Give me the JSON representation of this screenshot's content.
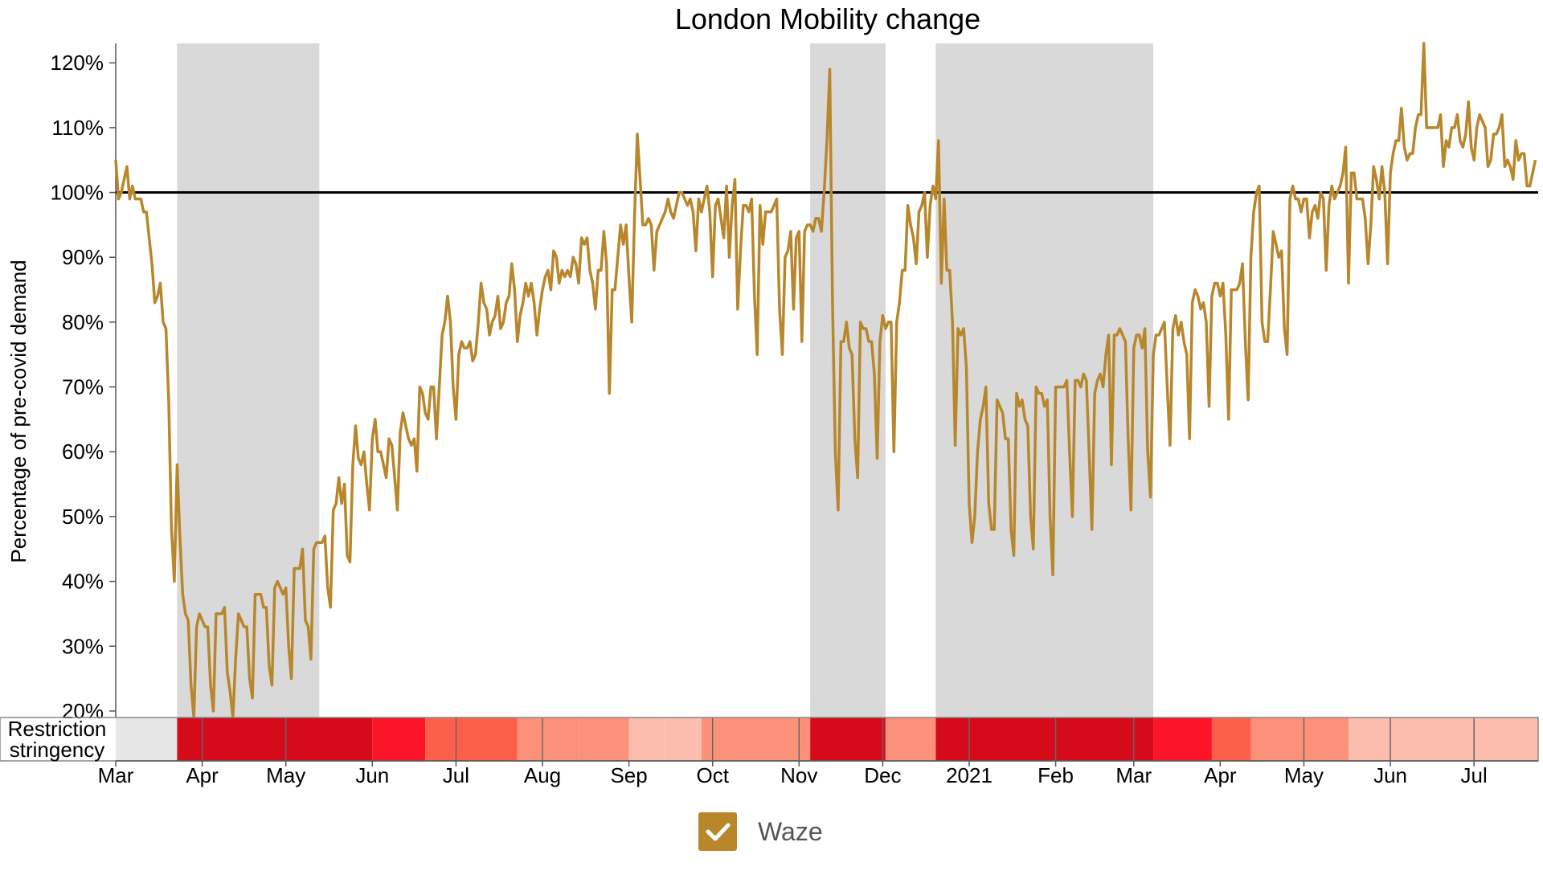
{
  "chart_data": {
    "type": "line",
    "title": "London Mobility change",
    "ylabel": "Percentage of pre-covid demand",
    "y_unit": "%",
    "ylim": [
      19,
      123
    ],
    "yticks": [
      20,
      30,
      40,
      50,
      60,
      70,
      80,
      90,
      100,
      110,
      120
    ],
    "xlim": [
      "2020-03-01",
      "2021-07-24"
    ],
    "x_ticks": [
      {
        "date": "2020-03-01",
        "label": "Mar"
      },
      {
        "date": "2020-04-01",
        "label": "Apr"
      },
      {
        "date": "2020-05-01",
        "label": "May"
      },
      {
        "date": "2020-06-01",
        "label": "Jun"
      },
      {
        "date": "2020-07-01",
        "label": "Jul"
      },
      {
        "date": "2020-08-01",
        "label": "Aug"
      },
      {
        "date": "2020-09-01",
        "label": "Sep"
      },
      {
        "date": "2020-10-01",
        "label": "Oct"
      },
      {
        "date": "2020-11-01",
        "label": "Nov"
      },
      {
        "date": "2020-12-01",
        "label": "Dec"
      },
      {
        "date": "2021-01-01",
        "label": "2021"
      },
      {
        "date": "2021-02-01",
        "label": "Feb"
      },
      {
        "date": "2021-03-01",
        "label": "Mar"
      },
      {
        "date": "2021-04-01",
        "label": "Apr"
      },
      {
        "date": "2021-05-01",
        "label": "May"
      },
      {
        "date": "2021-06-01",
        "label": "Jun"
      },
      {
        "date": "2021-07-01",
        "label": "Jul"
      }
    ],
    "reference_line": 100,
    "grid": false,
    "lockdown_periods": [
      {
        "start": "2020-03-23",
        "end": "2020-05-13"
      },
      {
        "start": "2020-11-05",
        "end": "2020-12-02"
      },
      {
        "start": "2020-12-20",
        "end": "2021-03-08"
      }
    ],
    "restriction_stringency": {
      "label_line1": "Restriction",
      "label_line2": "stringency",
      "segments": [
        {
          "start": "2020-03-01",
          "end": "2020-03-23",
          "color": "#e6e6e6"
        },
        {
          "start": "2020-03-23",
          "end": "2020-06-01",
          "color": "#d50a1b"
        },
        {
          "start": "2020-06-01",
          "end": "2020-06-20",
          "color": "#fb1526"
        },
        {
          "start": "2020-06-20",
          "end": "2020-07-23",
          "color": "#fc604a"
        },
        {
          "start": "2020-07-23",
          "end": "2020-08-14",
          "color": "#fc917a"
        },
        {
          "start": "2020-08-14",
          "end": "2020-09-01",
          "color": "#fc917a"
        },
        {
          "start": "2020-09-01",
          "end": "2020-09-14",
          "color": "#fcbcae"
        },
        {
          "start": "2020-09-14",
          "end": "2020-09-27",
          "color": "#fcbcae"
        },
        {
          "start": "2020-09-27",
          "end": "2020-11-05",
          "color": "#fc917a"
        },
        {
          "start": "2020-11-05",
          "end": "2020-12-02",
          "color": "#d50a1b"
        },
        {
          "start": "2020-12-02",
          "end": "2020-12-20",
          "color": "#fc917a"
        },
        {
          "start": "2020-12-20",
          "end": "2021-03-08",
          "color": "#d50a1b"
        },
        {
          "start": "2021-03-08",
          "end": "2021-03-29",
          "color": "#fb1526"
        },
        {
          "start": "2021-03-29",
          "end": "2021-04-12",
          "color": "#fc604a"
        },
        {
          "start": "2021-04-12",
          "end": "2021-05-17",
          "color": "#fc917a"
        },
        {
          "start": "2021-05-17",
          "end": "2021-06-21",
          "color": "#fcbcae"
        },
        {
          "start": "2021-06-21",
          "end": "2021-07-24",
          "color": "#fcbcae"
        }
      ],
      "dividers": [
        "2020-04-01",
        "2020-05-01",
        "2020-07-01",
        "2020-08-01",
        "2020-10-01",
        "2020-11-01",
        "2020-12-01",
        "2021-01-01",
        "2021-02-01",
        "2021-03-01",
        "2021-05-01",
        "2021-06-01",
        "2021-07-01"
      ]
    },
    "series": [
      {
        "name": "Waze",
        "color": "#b8862b",
        "start_date": "2020-03-01",
        "values": [
          105,
          99,
          100,
          102,
          104,
          99,
          101,
          99,
          99,
          99,
          97,
          97,
          93,
          89,
          83,
          84,
          86,
          80,
          79,
          68,
          48,
          40,
          58,
          47,
          38,
          35,
          34,
          24,
          19,
          33,
          35,
          34,
          33,
          33,
          24,
          20,
          35,
          35,
          35,
          36,
          26,
          23,
          19,
          28,
          35,
          34,
          33,
          33,
          25,
          22,
          38,
          38,
          38,
          36,
          36,
          27,
          24,
          39,
          40,
          39,
          38,
          39,
          30,
          25,
          42,
          42,
          42,
          45,
          34,
          33,
          28,
          45,
          46,
          46,
          46,
          47,
          39,
          36,
          51,
          52,
          56,
          52,
          55,
          44,
          43,
          58,
          64,
          59,
          58,
          60,
          55,
          51,
          62,
          65,
          60,
          60,
          58,
          56,
          62,
          61,
          56,
          51,
          63,
          66,
          64,
          62,
          61,
          62,
          57,
          70,
          69,
          66,
          65,
          70,
          70,
          62,
          70,
          78,
          80,
          84,
          80,
          70,
          65,
          75,
          77,
          76,
          76,
          77,
          74,
          75,
          80,
          86,
          83,
          82,
          78,
          80,
          81,
          84,
          79,
          80,
          83,
          84,
          89,
          85,
          77,
          81,
          83,
          86,
          84,
          86,
          83,
          78,
          82,
          85,
          87,
          88,
          85,
          91,
          90,
          86,
          88,
          87,
          88,
          87,
          90,
          89,
          86,
          93,
          92,
          93,
          88,
          86,
          82,
          88,
          88,
          94,
          89,
          69,
          85,
          85,
          90,
          95,
          92,
          95,
          87,
          80,
          96,
          109,
          102,
          95,
          95,
          96,
          95,
          88,
          94,
          95,
          96,
          97,
          99,
          97,
          96,
          98,
          100,
          100,
          99,
          98,
          99,
          97,
          91,
          99,
          97,
          99,
          101,
          97,
          87,
          98,
          99,
          96,
          93,
          101,
          90,
          98,
          102,
          82,
          91,
          98,
          98,
          97,
          99,
          84,
          75,
          98,
          92,
          97,
          97,
          97,
          98,
          99,
          82,
          75,
          90,
          91,
          94,
          82,
          93,
          94,
          77,
          94,
          95,
          95,
          94,
          96,
          96,
          94,
          100,
          108,
          119,
          83,
          60,
          51,
          77,
          77,
          80,
          76,
          75,
          62,
          56,
          80,
          79,
          79,
          77,
          77,
          72,
          59,
          77,
          81,
          79,
          80,
          80,
          60,
          80,
          83,
          88,
          88,
          98,
          95,
          93,
          89,
          97,
          98,
          100,
          90,
          98,
          101,
          99,
          108,
          86,
          99,
          88,
          88,
          80,
          61,
          79,
          78,
          79,
          73,
          52,
          46,
          50,
          60,
          65,
          67,
          70,
          52,
          48,
          48,
          68,
          67,
          66,
          62,
          62,
          48,
          44,
          69,
          67,
          68,
          65,
          64,
          50,
          45,
          70,
          69,
          69,
          67,
          68,
          50,
          41,
          70,
          70,
          70,
          70,
          71,
          60,
          50,
          71,
          71,
          70,
          72,
          71,
          60,
          48,
          69,
          71,
          72,
          70,
          75,
          78,
          58,
          78,
          78,
          79,
          78,
          77,
          62,
          51,
          76,
          78,
          78,
          76,
          79,
          60,
          53,
          75,
          78,
          78,
          79,
          80,
          70,
          61,
          79,
          81,
          78,
          80,
          77,
          75,
          62,
          83,
          85,
          84,
          82,
          83,
          80,
          67,
          84,
          86,
          86,
          84,
          86,
          78,
          65,
          85,
          85,
          85,
          86,
          89,
          77,
          68,
          90,
          97,
          100,
          101,
          80,
          77,
          77,
          85,
          94,
          92,
          90,
          91,
          79,
          75,
          99,
          101,
          99,
          99,
          97,
          99,
          99,
          93,
          97,
          98,
          96,
          100,
          99,
          88,
          98,
          101,
          99,
          100,
          101,
          103,
          107,
          86,
          103,
          103,
          99,
          99,
          99,
          96,
          89,
          95,
          104,
          102,
          99,
          104,
          100,
          89,
          103,
          106,
          108,
          108,
          113,
          107,
          105,
          106,
          106,
          110,
          112,
          112,
          123,
          110,
          110,
          110,
          110,
          110,
          112,
          104,
          108,
          107,
          110,
          110,
          112,
          108,
          107,
          109,
          114,
          107,
          105,
          110,
          112,
          111,
          110,
          104,
          105,
          109,
          109,
          110,
          112,
          104,
          105,
          104,
          102,
          108,
          105,
          106,
          106,
          101,
          101,
          103,
          105,
          null,
          null,
          null,
          102,
          94,
          108,
          101,
          101,
          104,
          104,
          104,
          108,
          110,
          108,
          105
        ]
      }
    ],
    "legend": {
      "position": "bottom-center",
      "label": "Waze",
      "checked": true
    }
  }
}
